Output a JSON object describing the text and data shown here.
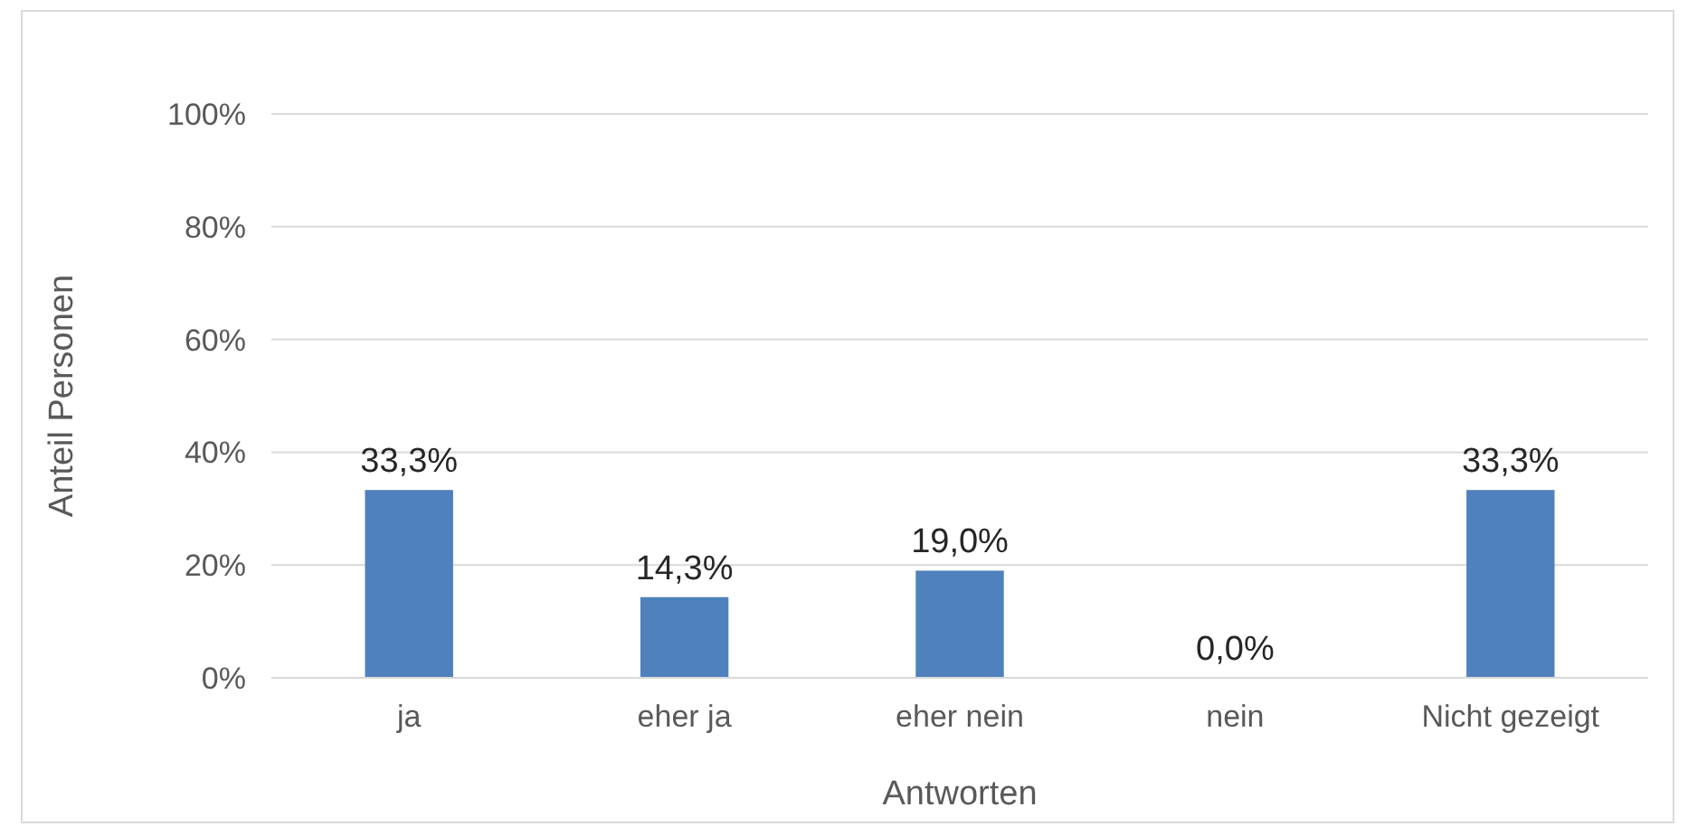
{
  "chart_data": {
    "type": "bar",
    "xlabel": "Antworten",
    "ylabel": "Anteil Personen",
    "categories": [
      "ja",
      "eher ja",
      "eher nein",
      "nein",
      "Nicht gezeigt"
    ],
    "values": [
      33.3,
      14.3,
      19.0,
      0.0,
      33.3
    ],
    "value_labels": [
      "33,3%",
      "14,3%",
      "19,0%",
      "0,0%",
      "33,3%"
    ],
    "color": "#4f81bd",
    "ylim": [
      0,
      100
    ],
    "yticks": [
      {
        "value": 0,
        "label": "0%"
      },
      {
        "value": 20,
        "label": "20%"
      },
      {
        "value": 40,
        "label": "40%"
      },
      {
        "value": 60,
        "label": "60%"
      },
      {
        "value": 80,
        "label": "80%"
      },
      {
        "value": 100,
        "label": "100%"
      }
    ],
    "grid": "y"
  }
}
